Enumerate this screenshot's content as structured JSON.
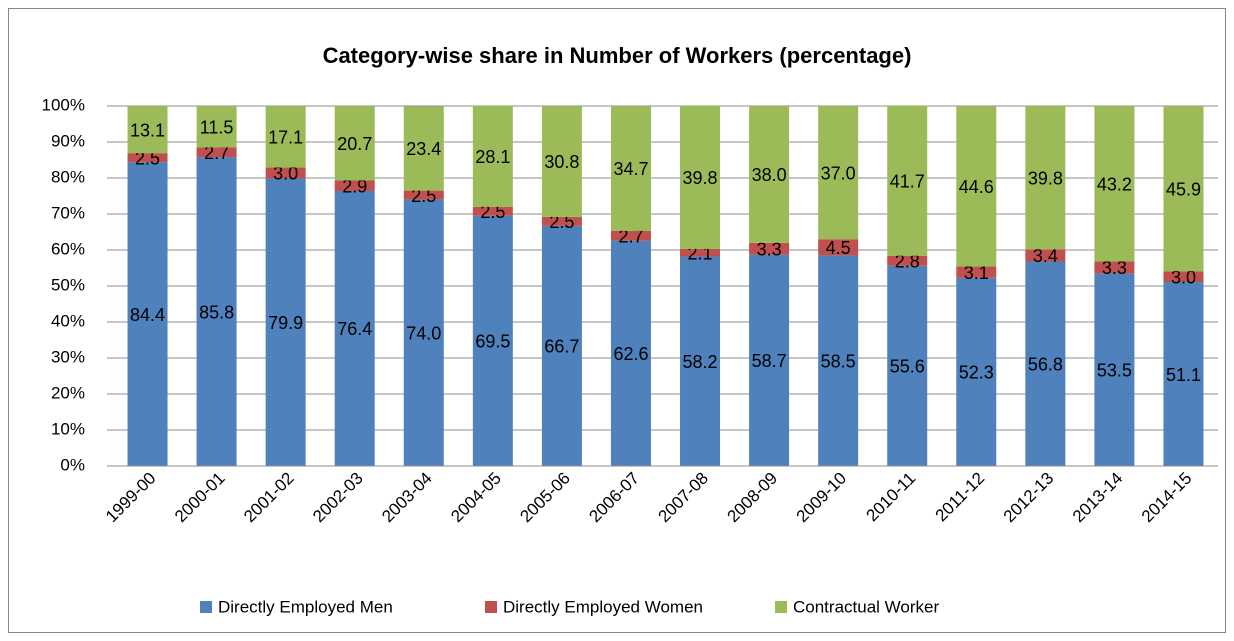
{
  "chart_data": {
    "type": "stacked_bar",
    "title": "Category-wise share  in Number of Workers (percentage)",
    "categories": [
      "1999-00",
      "2000-01",
      "2001-02",
      "2002-03",
      "2003-04",
      "2004-05",
      "2005-06",
      "2006-07",
      "2007-08",
      "2008-09",
      "2009-10",
      "2010-11",
      "2011-12",
      "2012-13",
      "2013-14",
      "2014-15"
    ],
    "series": [
      {
        "name": "Directly Employed Men",
        "color": "#4f81bd",
        "values": [
          84.4,
          85.8,
          79.9,
          76.4,
          74.0,
          69.5,
          66.7,
          62.6,
          58.2,
          58.7,
          58.5,
          55.6,
          52.3,
          56.8,
          53.5,
          51.1
        ],
        "value_labels": [
          "84.4",
          "85.8",
          "79.9",
          "76.4",
          "74.0",
          "69.5",
          "66.7",
          "62.6",
          "58.2",
          "58.7",
          "58.5",
          "55.6",
          "52.3",
          "56.8",
          "53.5",
          "51.1"
        ]
      },
      {
        "name": "Directly Employed Women",
        "color": "#c0504d",
        "values": [
          2.5,
          2.7,
          3.0,
          2.9,
          2.5,
          2.5,
          2.5,
          2.7,
          2.1,
          3.3,
          4.5,
          2.8,
          3.1,
          3.4,
          3.3,
          3.0
        ],
        "value_labels": [
          "2.5",
          "2.7",
          "3.0",
          "2.9",
          "2.5",
          "2.5",
          "2.5",
          "2.7",
          "2.1",
          "3.3",
          "4.5",
          "2.8",
          "3.1",
          "3.4",
          "3.3",
          "3.0"
        ]
      },
      {
        "name": "Contractual Worker",
        "color": "#9bbb59",
        "values": [
          13.1,
          11.5,
          17.1,
          20.7,
          23.4,
          28.1,
          30.8,
          34.7,
          39.8,
          38.0,
          37.0,
          41.7,
          44.6,
          39.8,
          43.2,
          45.9
        ],
        "value_labels": [
          "13.1",
          "11.5",
          "17.1",
          "20.7",
          "23.4",
          "28.1",
          "30.8",
          "34.7",
          "39.8",
          "38.0",
          "37.0",
          "41.7",
          "44.6",
          "39.8",
          "43.2",
          "45.9"
        ]
      }
    ],
    "ylim": [
      0,
      100
    ],
    "yticks": [
      {
        "value": 0,
        "label": "0%"
      },
      {
        "value": 10,
        "label": "10%"
      },
      {
        "value": 20,
        "label": "20%"
      },
      {
        "value": 30,
        "label": "30%"
      },
      {
        "value": 40,
        "label": "40%"
      },
      {
        "value": 50,
        "label": "50%"
      },
      {
        "value": 60,
        "label": "60%"
      },
      {
        "value": 70,
        "label": "70%"
      },
      {
        "value": 80,
        "label": "80%"
      },
      {
        "value": 90,
        "label": "90%"
      },
      {
        "value": 100,
        "label": "100%"
      }
    ],
    "grid": true,
    "legend": "bottom"
  }
}
